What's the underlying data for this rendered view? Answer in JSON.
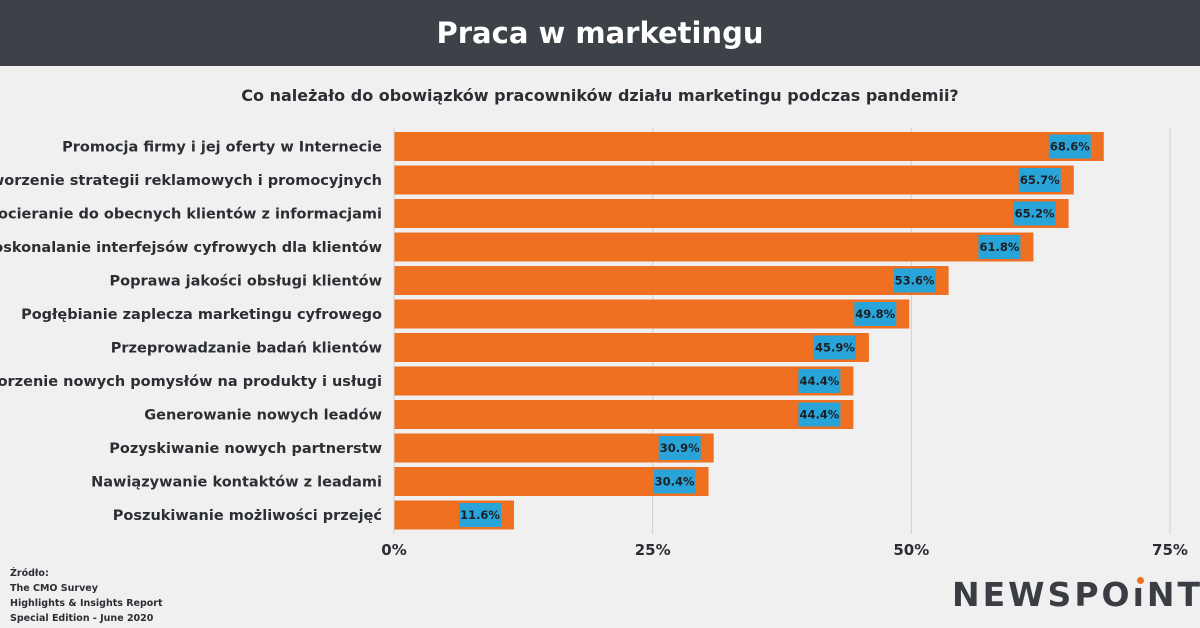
{
  "header": {
    "title": "Praca w marketingu"
  },
  "colors": {
    "bar": "#f07022",
    "label_box": "#29a4d9",
    "grid": "#cfcfcf",
    "header_bg": "#3d4249",
    "logo_accent": "#f07022"
  },
  "source": {
    "line1": "Źródło:",
    "line2": "The CMO Survey",
    "line3": "Highlights & Insights Report",
    "line4": "Special Edition - June 2020"
  },
  "logo": {
    "part1": "NEWSPO",
    "part2": "ı",
    "part3": "NT"
  },
  "chart_data": {
    "type": "bar",
    "orientation": "horizontal",
    "title": "Co należało do obowiązków pracowników działu marketingu podczas pandemii?",
    "categories": [
      "Promocja firmy i jej oferty w Internecie",
      "Tworzenie strategii reklamowych i promocyjnych",
      "Docieranie do obecnych klientów z informacjami",
      "Udoskonalanie interfejsów cyfrowych dla klientów",
      "Poprawa jakości obsługi klientów",
      "Pogłębianie zaplecza marketingu cyfrowego",
      "Przeprowadzanie badań klientów",
      "Tworzenie nowych pomysłów na produkty i usługi",
      "Generowanie nowych leadów",
      "Pozyskiwanie nowych partnerstw",
      "Nawiązywanie kontaktów z leadami",
      "Poszukiwanie możliwości przejęć"
    ],
    "values": [
      68.6,
      65.7,
      65.2,
      61.8,
      53.6,
      49.8,
      45.9,
      44.4,
      44.4,
      30.9,
      30.4,
      11.6
    ],
    "value_labels": [
      "68.6%",
      "65.7%",
      "65.2%",
      "61.8%",
      "53.6%",
      "49.8%",
      "45.9%",
      "44.4%",
      "44.4%",
      "30.9%",
      "30.4%",
      "11.6%"
    ],
    "xlim": [
      0,
      75
    ],
    "xticks": [
      0,
      25,
      50,
      75
    ],
    "xtick_labels": [
      "0%",
      "25%",
      "50%",
      "75%"
    ],
    "grid": true
  }
}
